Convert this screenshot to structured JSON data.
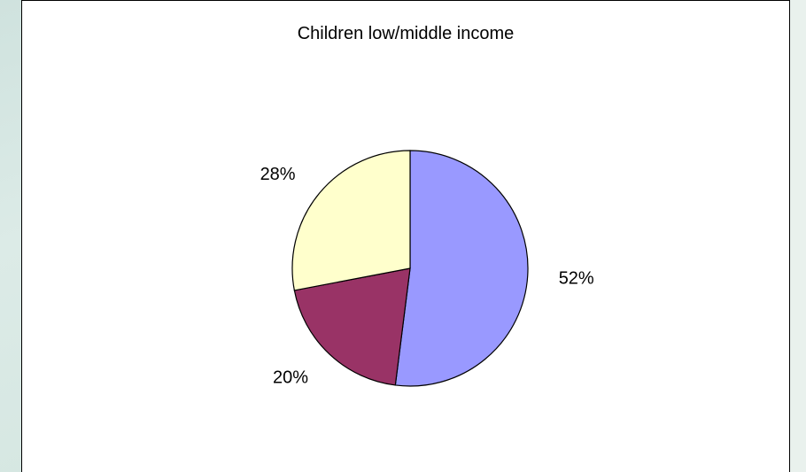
{
  "chart_data": {
    "type": "pie",
    "title": "Children low/middle income",
    "slices": [
      {
        "value": 52,
        "label": "52%",
        "color": "#9999ff"
      },
      {
        "value": 20,
        "label": "20%",
        "color": "#993366"
      },
      {
        "value": 28,
        "label": "28%",
        "color": "#ffffcc"
      }
    ],
    "start_angle_deg": 0,
    "direction": "clockwise",
    "legend": "none"
  }
}
